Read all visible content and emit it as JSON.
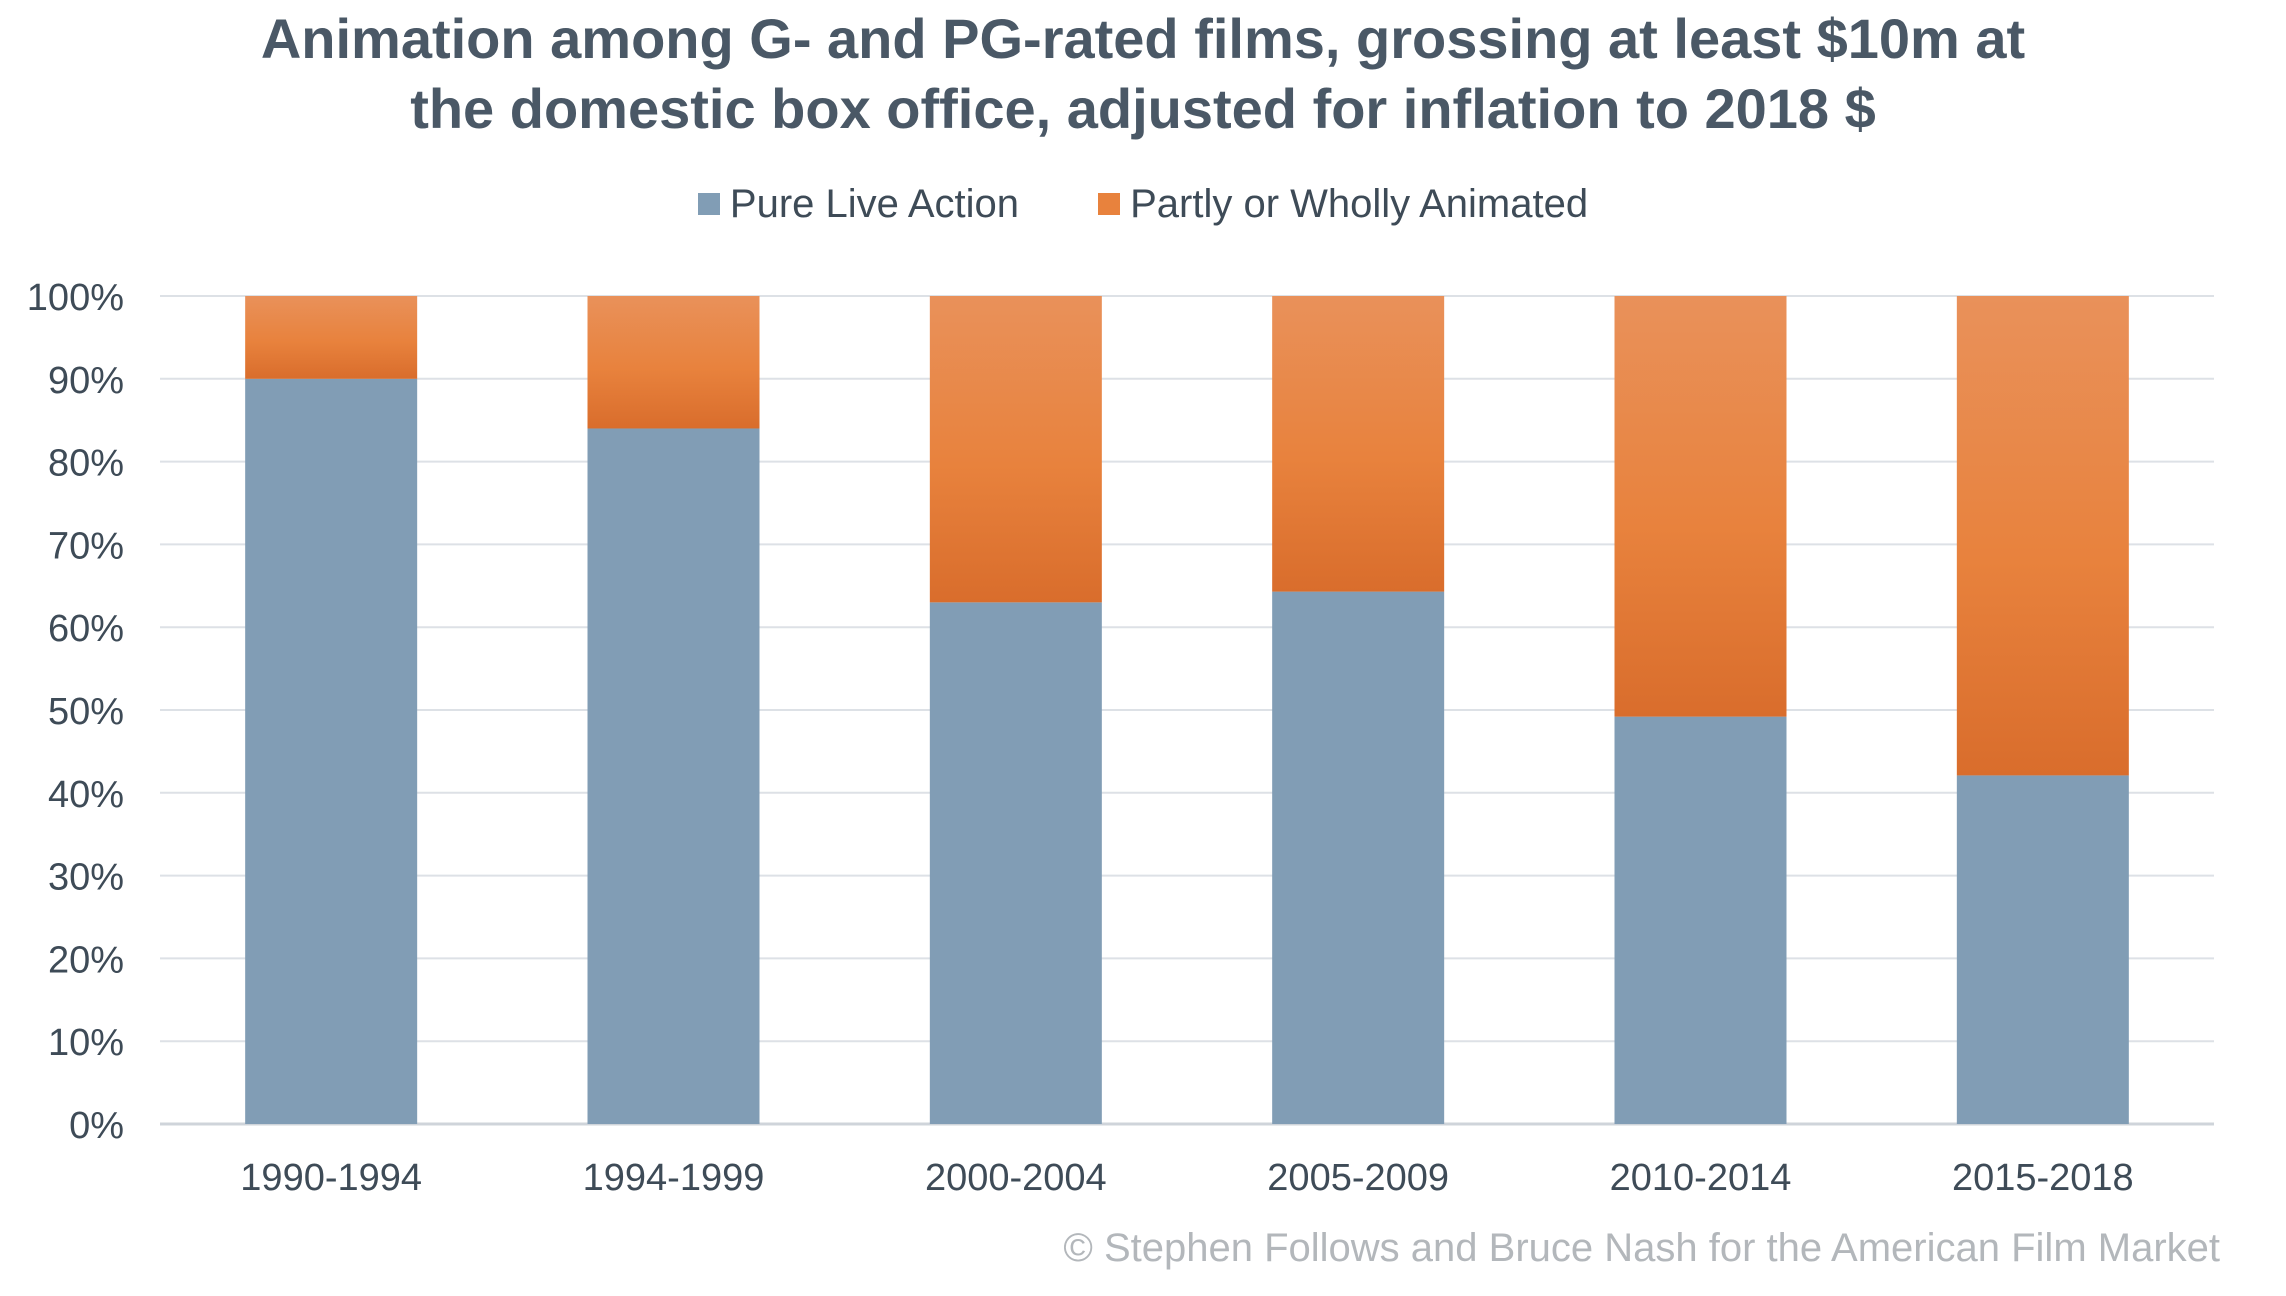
{
  "chart_data": {
    "type": "bar",
    "stacked": true,
    "title_lines": [
      "Animation among G- and PG-rated films, grossing at least $10m at",
      "the domestic box office, adjusted for inflation to 2018 $"
    ],
    "categories": [
      "1990-1994",
      "1994-1999",
      "2000-2004",
      "2005-2009",
      "2010-2014",
      "2015-2018"
    ],
    "series": [
      {
        "name": "Pure Live Action",
        "color": "#819db5",
        "values": [
          90,
          84,
          63,
          64.3,
          49.2,
          42.1
        ]
      },
      {
        "name": "Partly or Wholly Animated",
        "color": "#e8823d",
        "values": [
          10,
          16,
          37,
          35.7,
          50.8,
          57.9
        ]
      }
    ],
    "y_ticks": [
      "0%",
      "10%",
      "20%",
      "30%",
      "40%",
      "50%",
      "60%",
      "70%",
      "80%",
      "90%",
      "100%"
    ],
    "ylim": [
      0,
      100
    ],
    "grid": true,
    "legend_position": "top-center"
  },
  "credit": "© Stephen Follows and Bruce Nash for the American Film Market"
}
